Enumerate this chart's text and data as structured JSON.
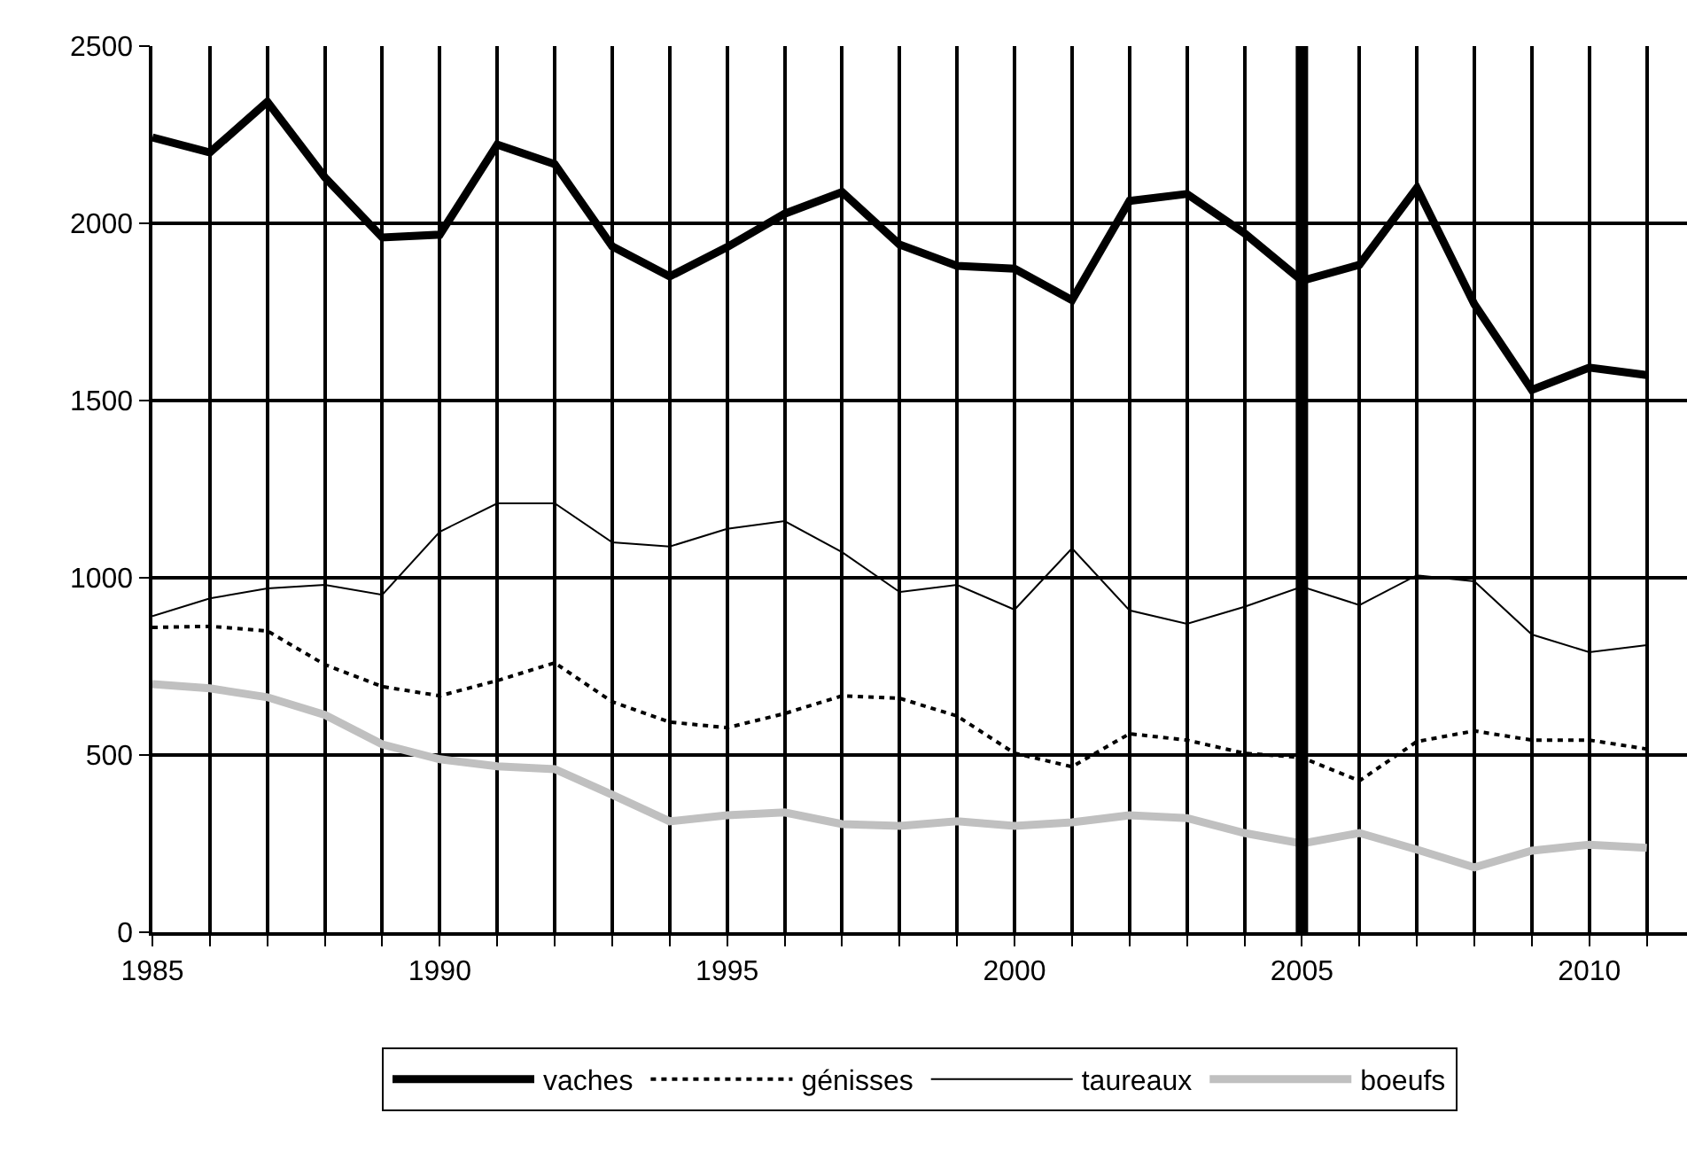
{
  "chart_data": {
    "type": "line",
    "x": [
      1985,
      1986,
      1987,
      1988,
      1989,
      1990,
      1991,
      1992,
      1993,
      1994,
      1995,
      1996,
      1997,
      1998,
      1999,
      2000,
      2001,
      2002,
      2003,
      2004,
      2005,
      2006,
      2007,
      2008,
      2009,
      2010,
      2011
    ],
    "series": [
      {
        "name": "vaches",
        "color": "#000000",
        "line_style": "solid",
        "values": [
          2242,
          2200,
          2343,
          2130,
          1960,
          1968,
          2222,
          2167,
          1935,
          1850,
          1933,
          2027,
          2088,
          1940,
          1880,
          1872,
          1783,
          2063,
          2083,
          1972,
          1838,
          1883,
          2100,
          1772,
          1530,
          1593,
          1572
        ]
      },
      {
        "name": "génisses",
        "color": "#000000",
        "line_style": "dotted",
        "values": [
          860,
          863,
          850,
          755,
          693,
          667,
          710,
          760,
          650,
          593,
          577,
          617,
          667,
          660,
          610,
          505,
          467,
          560,
          542,
          505,
          493,
          427,
          538,
          568,
          542,
          542,
          517
        ]
      },
      {
        "name": "taureaux",
        "color": "#000000",
        "line_style": "solid",
        "values": [
          892,
          942,
          970,
          980,
          952,
          1130,
          1210,
          1210,
          1100,
          1088,
          1138,
          1160,
          1072,
          960,
          980,
          910,
          1083,
          908,
          870,
          918,
          975,
          923,
          1007,
          990,
          840,
          790,
          810
        ]
      },
      {
        "name": "boeufs",
        "color": "#c0c0c0",
        "line_style": "solid",
        "values": [
          700,
          688,
          663,
          613,
          530,
          488,
          468,
          460,
          388,
          313,
          330,
          338,
          305,
          300,
          313,
          300,
          310,
          330,
          322,
          280,
          250,
          280,
          233,
          183,
          230,
          247,
          238
        ]
      }
    ],
    "xlim": [
      1985,
      2011.7
    ],
    "xticks": [
      1985,
      {
        "value": 1986,
        "label": null
      },
      {
        "value": 1987,
        "label": null
      },
      {
        "value": 1988,
        "label": null
      },
      {
        "value": 1989,
        "label": null
      },
      1990,
      {
        "value": 1991,
        "label": null
      },
      {
        "value": 1992,
        "label": null
      },
      {
        "value": 1993,
        "label": null
      },
      {
        "value": 1994,
        "label": null
      },
      1995,
      {
        "value": 1996,
        "label": null
      },
      {
        "value": 1997,
        "label": null
      },
      {
        "value": 1998,
        "label": null
      },
      {
        "value": 1999,
        "label": null
      },
      2000,
      {
        "value": 2001,
        "label": null
      },
      {
        "value": 2002,
        "label": null
      },
      {
        "value": 2003,
        "label": null
      },
      {
        "value": 2004,
        "label": null
      },
      2005,
      {
        "value": 2006,
        "label": null
      },
      {
        "value": 2007,
        "label": null
      },
      {
        "value": 2008,
        "label": null
      },
      {
        "value": 2009,
        "label": null
      },
      2010,
      {
        "value": 2011,
        "label": null
      }
    ],
    "ylim": [
      0,
      2500
    ],
    "yticks": [
      0,
      500,
      1000,
      1500,
      2000,
      2500
    ],
    "grid": true,
    "legend": "bottom",
    "ref_lines": [
      {
        "axis": "x",
        "value": 2005,
        "label": null,
        "color": "#000000"
      }
    ]
  }
}
